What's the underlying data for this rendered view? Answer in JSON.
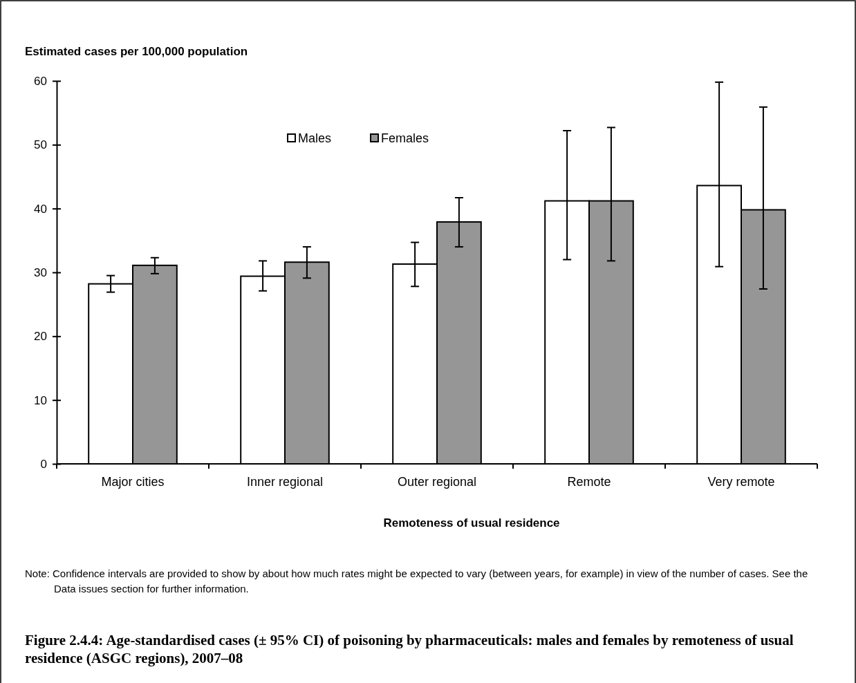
{
  "chart_data": {
    "type": "bar",
    "title": "Figure 2.4.4: Age-standardised cases (± 95% CI) of poisoning by pharmaceuticals: males and females by remoteness of usual residence (ASGC regions), 2007–08",
    "ylabel": "Estimated cases per 100,000 population",
    "xlabel": "Remoteness of usual residence",
    "categories": [
      "Major cities",
      "Inner regional",
      "Outer regional",
      "Remote",
      "Very remote"
    ],
    "series": [
      {
        "name": "Males",
        "color": "#ffffff",
        "values": [
          28.2,
          29.4,
          31.3,
          41.2,
          43.6
        ],
        "errors": [
          [
            26.9,
            29.5
          ],
          [
            27.1,
            31.8
          ],
          [
            27.8,
            34.7
          ],
          [
            32.0,
            52.2
          ],
          [
            30.9,
            59.8
          ]
        ]
      },
      {
        "name": "Females",
        "color": "#969696",
        "values": [
          31.1,
          31.6,
          37.9,
          41.2,
          39.8
        ],
        "errors": [
          [
            29.8,
            32.3
          ],
          [
            29.1,
            34.0
          ],
          [
            34.0,
            41.7
          ],
          [
            31.8,
            52.7
          ],
          [
            27.4,
            55.9
          ]
        ]
      }
    ],
    "ylim": [
      0,
      60
    ],
    "yticks": [
      0,
      10,
      20,
      30,
      40,
      50,
      60
    ],
    "legend": "top",
    "annotations": [
      "Note: Confidence intervals are provided to show by about how much rates might be expected to vary (between years, for example) in view of the number of cases. See the Data issues section for further information."
    ]
  }
}
